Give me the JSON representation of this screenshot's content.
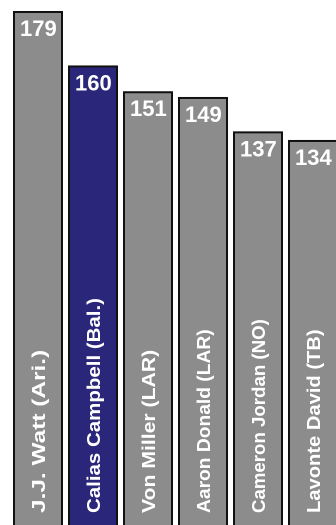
{
  "chart_data": {
    "type": "bar",
    "title": "",
    "xlabel": "",
    "ylabel": "",
    "ylim": [
      0,
      179
    ],
    "grid": false,
    "legend": "none",
    "categories": [
      "J.J. Watt (Ari.)",
      "Calias Campbell (Bal.)",
      "Von Miller (LAR)",
      "Aaron Donald (LAR)",
      "Cameron Jordan (NO)",
      "Lavonte David (TB)"
    ],
    "values": [
      179,
      160,
      151,
      149,
      137,
      134
    ],
    "highlight_index": 1,
    "colors": {
      "bar": "#8c8c8c",
      "highlight": "#2a2679",
      "outline": "#111111",
      "text": "#ffffff",
      "background": "#ffffff"
    }
  }
}
